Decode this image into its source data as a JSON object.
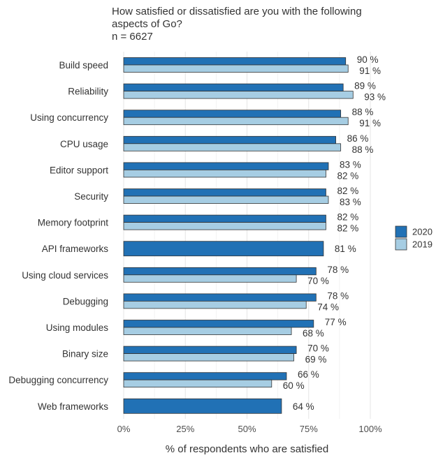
{
  "chart_data": {
    "type": "bar",
    "orientation": "horizontal",
    "title_lines": [
      "How satisfied or dissatisfied are you with the following",
      "aspects of Go?"
    ],
    "subtitle": "n = 6627",
    "xlabel": "% of respondents who are satisfied",
    "ylabel": "",
    "xlim": [
      0,
      100
    ],
    "x_ticks": [
      0,
      25,
      50,
      75,
      100
    ],
    "x_tick_labels": [
      "0%",
      "25%",
      "50%",
      "75%",
      "100%"
    ],
    "grid": true,
    "legend_position": "right",
    "categories": [
      "Build speed",
      "Reliability",
      "Using concurrency",
      "CPU usage",
      "Editor support",
      "Security",
      "Memory footprint",
      "API frameworks",
      "Using cloud services",
      "Debugging",
      "Using modules",
      "Binary size",
      "Debugging concurrency",
      "Web frameworks"
    ],
    "series": [
      {
        "name": "2020",
        "color": "#2171b5",
        "values": [
          90,
          89,
          88,
          86,
          83,
          82,
          82,
          81,
          78,
          78,
          77,
          70,
          66,
          64
        ],
        "labels": [
          "90 %",
          "89 %",
          "88 %",
          "86 %",
          "83 %",
          "82 %",
          "82 %",
          "81 %",
          "78 %",
          "78 %",
          "77 %",
          "70 %",
          "66 %",
          "64 %"
        ]
      },
      {
        "name": "2019",
        "color": "#a6cde3",
        "values": [
          91,
          93,
          91,
          88,
          82,
          83,
          82,
          null,
          70,
          74,
          68,
          69,
          60,
          null
        ],
        "labels": [
          "91 %",
          "93 %",
          "91 %",
          "88 %",
          "82 %",
          "83 %",
          "82 %",
          null,
          "70 %",
          "74 %",
          "68 %",
          "69 %",
          "60 %",
          null
        ]
      }
    ]
  }
}
